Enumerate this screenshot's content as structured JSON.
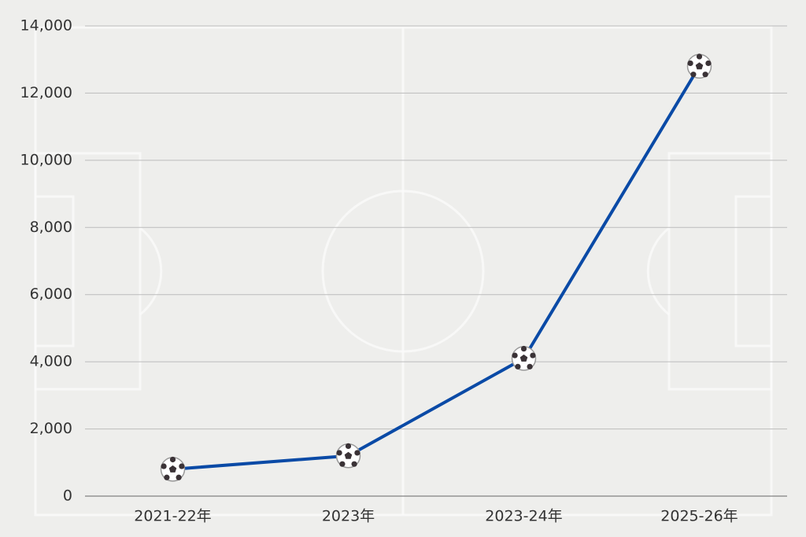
{
  "chart_data": {
    "type": "line",
    "categories": [
      "2021-22年",
      "2023年",
      "2023-24年",
      "2025-26年"
    ],
    "values": [
      800,
      1200,
      4100,
      12800
    ],
    "color": "#0a4aa6",
    "ylim": [
      0,
      14000
    ],
    "yticks": [
      0,
      {
        "value": 2000,
        "label": "2,000"
      },
      {
        "value": 4000,
        "label": "4,000"
      },
      {
        "value": 6000,
        "label": "6,000"
      },
      {
        "value": 8000,
        "label": "8,000"
      },
      {
        "value": 10000,
        "label": "10,000"
      },
      {
        "value": 12000,
        "label": "12,000"
      },
      {
        "value": 14000,
        "label": "14,000"
      }
    ],
    "grid": true
  }
}
